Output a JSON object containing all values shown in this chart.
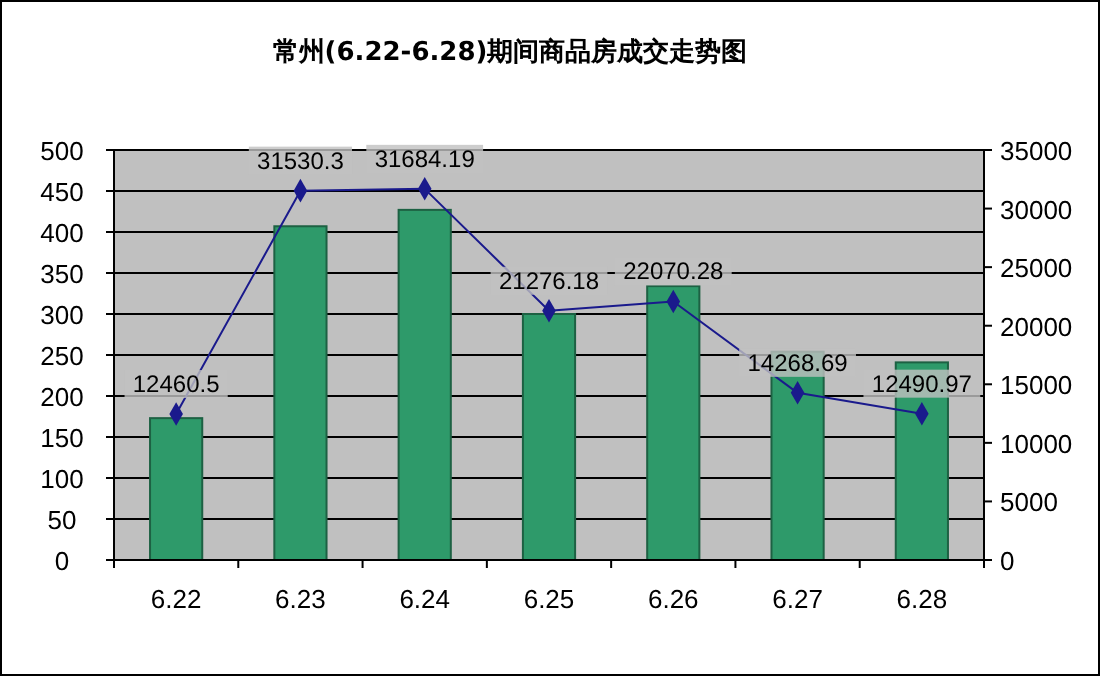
{
  "chart_data": {
    "type": "bar",
    "title": "常州(6.22-6.28)期间商品房成交走势图",
    "categories": [
      "6.22",
      "6.23",
      "6.24",
      "6.25",
      "6.26",
      "6.27",
      "6.28"
    ],
    "series": [
      {
        "color": "#2e9a6a",
        "values": [
          173,
          407,
          427,
          300,
          334,
          254,
          241
        ]
      },
      {
        "type": "line",
        "axis": "y2",
        "color": "#1a1a8c",
        "marker": "diamond",
        "values": [
          12460.5,
          31530.3,
          31684.19,
          21276.18,
          22070.28,
          14268.69,
          12490.97
        ],
        "value_labels": [
          "12460.5",
          "31530.3",
          "31684.19",
          "21276.18",
          "22070.28",
          "14268.69",
          "12490.97"
        ]
      }
    ],
    "ylim": [
      0,
      500
    ],
    "yticks": [
      0,
      50,
      100,
      150,
      200,
      250,
      300,
      350,
      400,
      450,
      500
    ],
    "y2lim": [
      0,
      35000
    ],
    "y2ticks": [
      0,
      5000,
      10000,
      15000,
      20000,
      25000,
      30000,
      35000
    ],
    "grid": "y"
  }
}
